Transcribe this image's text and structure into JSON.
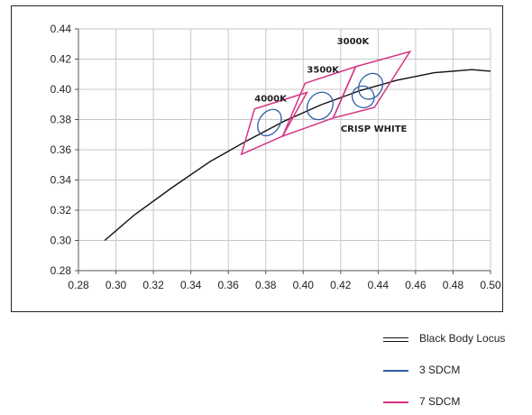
{
  "chart_data": {
    "type": "scatter",
    "xlim": [
      0.28,
      0.5
    ],
    "ylim": [
      0.28,
      0.44
    ],
    "x_ticks": [
      "0.28",
      "0.30",
      "0.32",
      "0.34",
      "0.36",
      "0.38",
      "0.40",
      "0.42",
      "0.44",
      "0.46",
      "0.48",
      "0.50"
    ],
    "y_ticks": [
      "0.28",
      "0.30",
      "0.32",
      "0.34",
      "0.36",
      "0.38",
      "0.40",
      "0.42",
      "0.44"
    ],
    "grid": true,
    "legend_position": "bottom-right",
    "series": [
      {
        "name": "Black Body Locus",
        "kind": "line",
        "color": "#111111",
        "points": [
          [
            0.294,
            0.3
          ],
          [
            0.31,
            0.317
          ],
          [
            0.33,
            0.335
          ],
          [
            0.35,
            0.352
          ],
          [
            0.37,
            0.366
          ],
          [
            0.39,
            0.379
          ],
          [
            0.41,
            0.39
          ],
          [
            0.43,
            0.399
          ],
          [
            0.45,
            0.406
          ],
          [
            0.47,
            0.411
          ],
          [
            0.49,
            0.413
          ],
          [
            0.5,
            0.412
          ]
        ]
      },
      {
        "name": "3 SDCM",
        "kind": "ellipse",
        "color": "#2f5ea8",
        "ellipses": [
          {
            "cx": 0.382,
            "cy": 0.378,
            "rx": 0.0055,
            "ry": 0.0095
          },
          {
            "cx": 0.409,
            "cy": 0.389,
            "rx": 0.0065,
            "ry": 0.0095
          },
          {
            "cx": 0.432,
            "cy": 0.395,
            "rx": 0.006,
            "ry": 0.007
          },
          {
            "cx": 0.436,
            "cy": 0.402,
            "rx": 0.006,
            "ry": 0.009
          }
        ]
      },
      {
        "name": "7 SDCM",
        "kind": "polygon",
        "color": "#d63384",
        "polygons": [
          [
            [
              0.374,
              0.387
            ],
            [
              0.402,
              0.398
            ],
            [
              0.389,
              0.369
            ],
            [
              0.367,
              0.357
            ]
          ],
          [
            [
              0.401,
              0.404
            ],
            [
              0.428,
              0.415
            ],
            [
              0.416,
              0.381
            ],
            [
              0.389,
              0.369
            ]
          ],
          [
            [
              0.428,
              0.415
            ],
            [
              0.457,
              0.425
            ],
            [
              0.438,
              0.388
            ],
            [
              0.416,
              0.381
            ]
          ]
        ]
      }
    ],
    "annotations": [
      {
        "text": "4000K",
        "x": 0.374,
        "y": 0.392
      },
      {
        "text": "3500K",
        "x": 0.402,
        "y": 0.411
      },
      {
        "text": "3000K",
        "x": 0.418,
        "y": 0.43
      },
      {
        "text": "CRISP WHITE",
        "x": 0.42,
        "y": 0.372
      }
    ]
  },
  "legend": [
    {
      "label": "Black Body Locus",
      "color": "#111111",
      "style": "double"
    },
    {
      "label": "3 SDCM",
      "color": "#2f5ea8",
      "style": "solid"
    },
    {
      "label": "7 SDCM",
      "color": "#d63384",
      "style": "solid"
    }
  ]
}
